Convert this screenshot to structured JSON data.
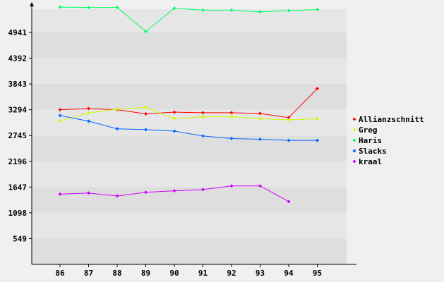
{
  "chart_data": {
    "type": "line",
    "title": "",
    "xlabel": "",
    "ylabel": "",
    "categories": [
      "86",
      "87",
      "88",
      "89",
      "90",
      "91",
      "92",
      "93",
      "94",
      "95"
    ],
    "y_ticks": [
      549,
      1098,
      1647,
      2196,
      2745,
      3294,
      3843,
      4392,
      4941
    ],
    "ylim": [
      0,
      5440
    ],
    "grid": "horizontal-bands",
    "legend_position": "right",
    "series": [
      {
        "name": "Allianzschnitt",
        "color": "#ff0000",
        "values": [
          3294,
          3319,
          3294,
          3206,
          3243,
          3230,
          3230,
          3214,
          3126,
          3746
        ]
      },
      {
        "name": "Greg",
        "color": "#ccff00",
        "values": [
          3059,
          3226,
          3306,
          3345,
          3104,
          3144,
          3144,
          3104,
          3078,
          3104
        ]
      },
      {
        "name": "Haris",
        "color": "#00ff66",
        "values": [
          5479,
          5472,
          5472,
          4962,
          5457,
          5416,
          5416,
          5378,
          5407,
          5429
        ]
      },
      {
        "name": "Slacks",
        "color": "#0066ff",
        "values": [
          3171,
          3051,
          2887,
          2870,
          2838,
          2735,
          2681,
          2666,
          2642,
          2642
        ]
      },
      {
        "name": "kraal",
        "color": "#cc00ff",
        "values": [
          1497,
          1520,
          1456,
          1536,
          1567,
          1593,
          1671,
          1671,
          1339,
          null
        ]
      }
    ]
  }
}
